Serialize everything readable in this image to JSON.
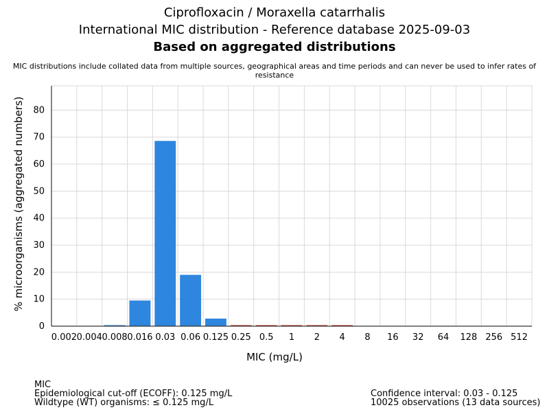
{
  "chart_data": {
    "type": "bar",
    "title": "Ciprofloxacin / Moraxella catarrhalis",
    "subtitle": "International MIC distribution - Reference database 2025-09-03",
    "subtitle2": "Based on aggregated distributions",
    "note": "MIC distributions include collated data from multiple sources, geographical areas and time periods and can never be used to infer rates of resistance",
    "xlabel": "MIC (mg/L)",
    "ylabel": "% microorganisms (aggregated numbers)",
    "categories": [
      "0.002",
      "0.004",
      "0.008",
      "0.016",
      "0.03",
      "0.06",
      "0.125",
      "0.25",
      "0.5",
      "1",
      "2",
      "4",
      "8",
      "16",
      "32",
      "64",
      "128",
      "256",
      "512"
    ],
    "values": [
      0,
      0,
      0.3,
      9.5,
      68.6,
      19.0,
      2.8,
      0.2,
      0.2,
      0.2,
      0.2,
      0.2,
      0,
      0,
      0,
      0,
      0,
      0,
      0
    ],
    "ylim": [
      0,
      89
    ],
    "yticks": [
      0,
      10,
      20,
      30,
      40,
      50,
      60,
      70,
      80
    ],
    "grid": true,
    "colors": {
      "wildtype": "#2e86de",
      "non_wildtype": "#c0392b",
      "grid": "#d9d9d9",
      "axis": "#333333"
    },
    "wildtype_last_index": 6
  },
  "footer": {
    "left": [
      "MIC",
      "Epidemiological cut-off (ECOFF): 0.125 mg/L",
      "Wildtype (WT) organisms: ≤ 0.125 mg/L"
    ],
    "right": [
      "Confidence interval: 0.03 - 0.125",
      "10025 observations (13 data sources)"
    ]
  }
}
